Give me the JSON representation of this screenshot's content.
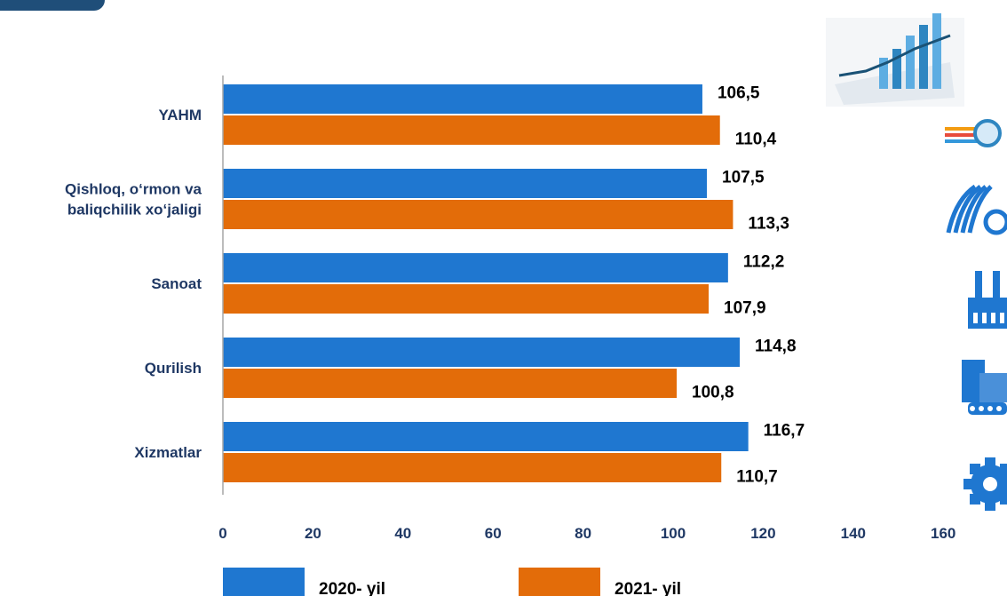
{
  "chart_data": {
    "type": "bar",
    "orientation": "horizontal",
    "categories": [
      "YAHM",
      "Qishloq, o‘rmon va baliqchilik xo‘jaligi",
      "Sanoat",
      "Qurilish",
      "Xizmatlar"
    ],
    "category_lines": [
      [
        "YAHM"
      ],
      [
        "Qishloq, o‘rmon va",
        "baliqchilik xo‘jaligi"
      ],
      [
        "Sanoat"
      ],
      [
        "Qurilish"
      ],
      [
        "Xizmatlar"
      ]
    ],
    "series": [
      {
        "name": "2020- yil",
        "values": [
          106.5,
          107.5,
          112.2,
          114.8,
          116.7
        ],
        "color": "#1f77d0"
      },
      {
        "name": "2021- yil",
        "values": [
          110.4,
          113.3,
          107.9,
          100.8,
          110.7
        ],
        "color": "#e36c09"
      }
    ],
    "value_labels": [
      [
        "106,5",
        "107,5",
        "112,2",
        "114,8",
        "116,7"
      ],
      [
        "110,4",
        "113,3",
        "107,9",
        "100,8",
        "110,7"
      ]
    ],
    "x_ticks": [
      0,
      20,
      40,
      60,
      80,
      100,
      120,
      140,
      160
    ],
    "xlim": [
      0,
      160
    ],
    "grid": false,
    "legend_position": "bottom",
    "tick_color": "#1f3864",
    "category_color": "#1f3864"
  },
  "decorations": {
    "icons": [
      "growth-chart-icon",
      "magnifier-icon",
      "tractor-icon",
      "factory-icon",
      "construction-icon",
      "gear-icon"
    ]
  }
}
